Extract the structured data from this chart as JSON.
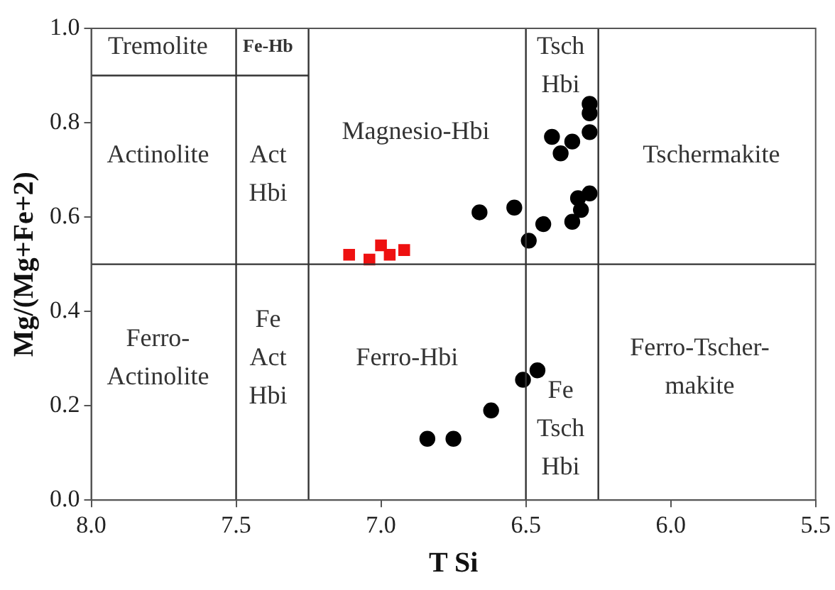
{
  "chart_data": {
    "type": "scatter",
    "xlabel": "T Si",
    "ylabel": "Mg/(Mg+Fe+2)",
    "xlim": [
      8.0,
      5.5
    ],
    "xticks": [
      {
        "value": 8,
        "label": "8.0"
      },
      {
        "value": 7.5,
        "label": "7.5"
      },
      {
        "value": 7,
        "label": "7.0"
      },
      {
        "value": 6.5,
        "label": "6.5"
      },
      {
        "value": 6,
        "label": "6.0"
      },
      {
        "value": 5.5,
        "label": "5.5"
      }
    ],
    "ylim": [
      0,
      1
    ],
    "yticks": [
      {
        "value": 0,
        "label": "0.0"
      },
      {
        "value": 0.2,
        "label": "0.2"
      },
      {
        "value": 0.4,
        "label": "0.4"
      },
      {
        "value": 0.6,
        "label": "0.6"
      },
      {
        "value": 0.8,
        "label": "0.8"
      },
      {
        "value": 1,
        "label": "1.0"
      }
    ],
    "grid": false,
    "legend": false,
    "series": [
      {
        "marker": "circle",
        "color": "#000000",
        "x": [
          6.66,
          6.54,
          6.49,
          6.44,
          6.41,
          6.34,
          6.38,
          6.28,
          6.28,
          6.28,
          6.34,
          6.31,
          6.32,
          6.28,
          6.84,
          6.75,
          6.62,
          6.51,
          6.46
        ],
        "values": [
          0.61,
          0.62,
          0.55,
          0.585,
          0.77,
          0.76,
          0.735,
          0.84,
          0.82,
          0.78,
          0.59,
          0.615,
          0.64,
          0.65,
          0.13,
          0.13,
          0.19,
          0.255,
          0.275
        ]
      },
      {
        "marker": "square",
        "color": "#ee1111",
        "x": [
          7.11,
          7.04,
          7.0,
          6.97,
          6.92
        ],
        "values": [
          0.52,
          0.51,
          0.54,
          0.52,
          0.53
        ]
      },
      {
        "type": "line",
        "marker": "none",
        "color": "#333333",
        "x": [
          8.0,
          7.25
        ],
        "values": [
          0.9,
          0.9
        ]
      }
    ],
    "ref_lines": [
      {
        "axis": "y",
        "value": 0.5,
        "color": "#333333"
      },
      {
        "axis": "x",
        "value": 7.5,
        "color": "#333333"
      },
      {
        "axis": "x",
        "value": 7.25,
        "color": "#333333"
      },
      {
        "axis": "x",
        "value": 6.5,
        "color": "#333333"
      },
      {
        "axis": "x",
        "value": 6.25,
        "color": "#333333"
      }
    ],
    "annotations": [
      "Tremolite",
      "Fe-Hb",
      "Tsch\nHbi",
      "Actinolite",
      "Act\nHbi",
      "Magnesio-Hbi",
      "Tschermakite",
      "Ferro-\nActinolite",
      "Fe\nAct\nHbi",
      "Ferro-Hbi",
      "Fe\nTsch\nHbi",
      "Ferro-Tscher-\nmakite"
    ]
  }
}
